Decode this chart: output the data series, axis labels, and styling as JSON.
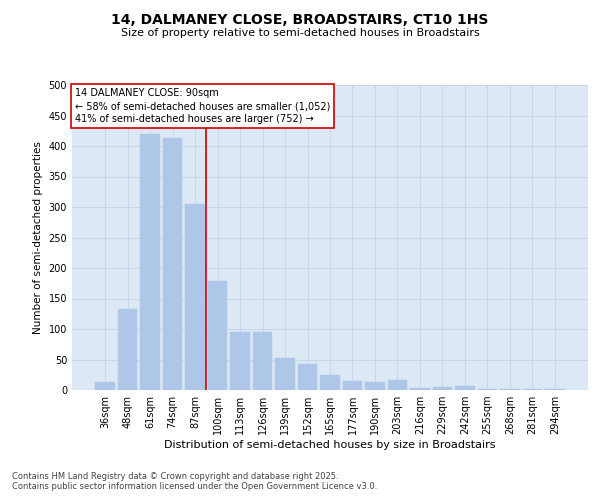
{
  "title": "14, DALMANEY CLOSE, BROADSTAIRS, CT10 1HS",
  "subtitle": "Size of property relative to semi-detached houses in Broadstairs",
  "xlabel": "Distribution of semi-detached houses by size in Broadstairs",
  "ylabel": "Number of semi-detached properties",
  "categories": [
    "36sqm",
    "48sqm",
    "61sqm",
    "74sqm",
    "87sqm",
    "100sqm",
    "113sqm",
    "126sqm",
    "139sqm",
    "152sqm",
    "165sqm",
    "177sqm",
    "190sqm",
    "203sqm",
    "216sqm",
    "229sqm",
    "242sqm",
    "255sqm",
    "268sqm",
    "281sqm",
    "294sqm"
  ],
  "values": [
    13,
    133,
    420,
    413,
    305,
    178,
    95,
    95,
    53,
    42,
    25,
    14,
    13,
    17,
    3,
    5,
    6,
    2,
    1,
    1,
    1
  ],
  "bar_color": "#aec6e8",
  "bar_edgecolor": "#aec6e8",
  "grid_color": "#c8d4e8",
  "bg_color": "#dde8f5",
  "vline_color": "#cc0000",
  "vline_pos": 4.5,
  "annotation_title": "14 DALMANEY CLOSE: 90sqm",
  "annotation_line1": "← 58% of semi-detached houses are smaller (1,052)",
  "annotation_line2": "41% of semi-detached houses are larger (752) →",
  "annotation_box_color": "#cc0000",
  "ylim": [
    0,
    500
  ],
  "yticks": [
    0,
    50,
    100,
    150,
    200,
    250,
    300,
    350,
    400,
    450,
    500
  ],
  "footer1": "Contains HM Land Registry data © Crown copyright and database right 2025.",
  "footer2": "Contains public sector information licensed under the Open Government Licence v3.0.",
  "title_fontsize": 10,
  "subtitle_fontsize": 8,
  "tick_fontsize": 7,
  "ylabel_fontsize": 7.5,
  "xlabel_fontsize": 8,
  "annotation_fontsize": 7,
  "footer_fontsize": 6
}
